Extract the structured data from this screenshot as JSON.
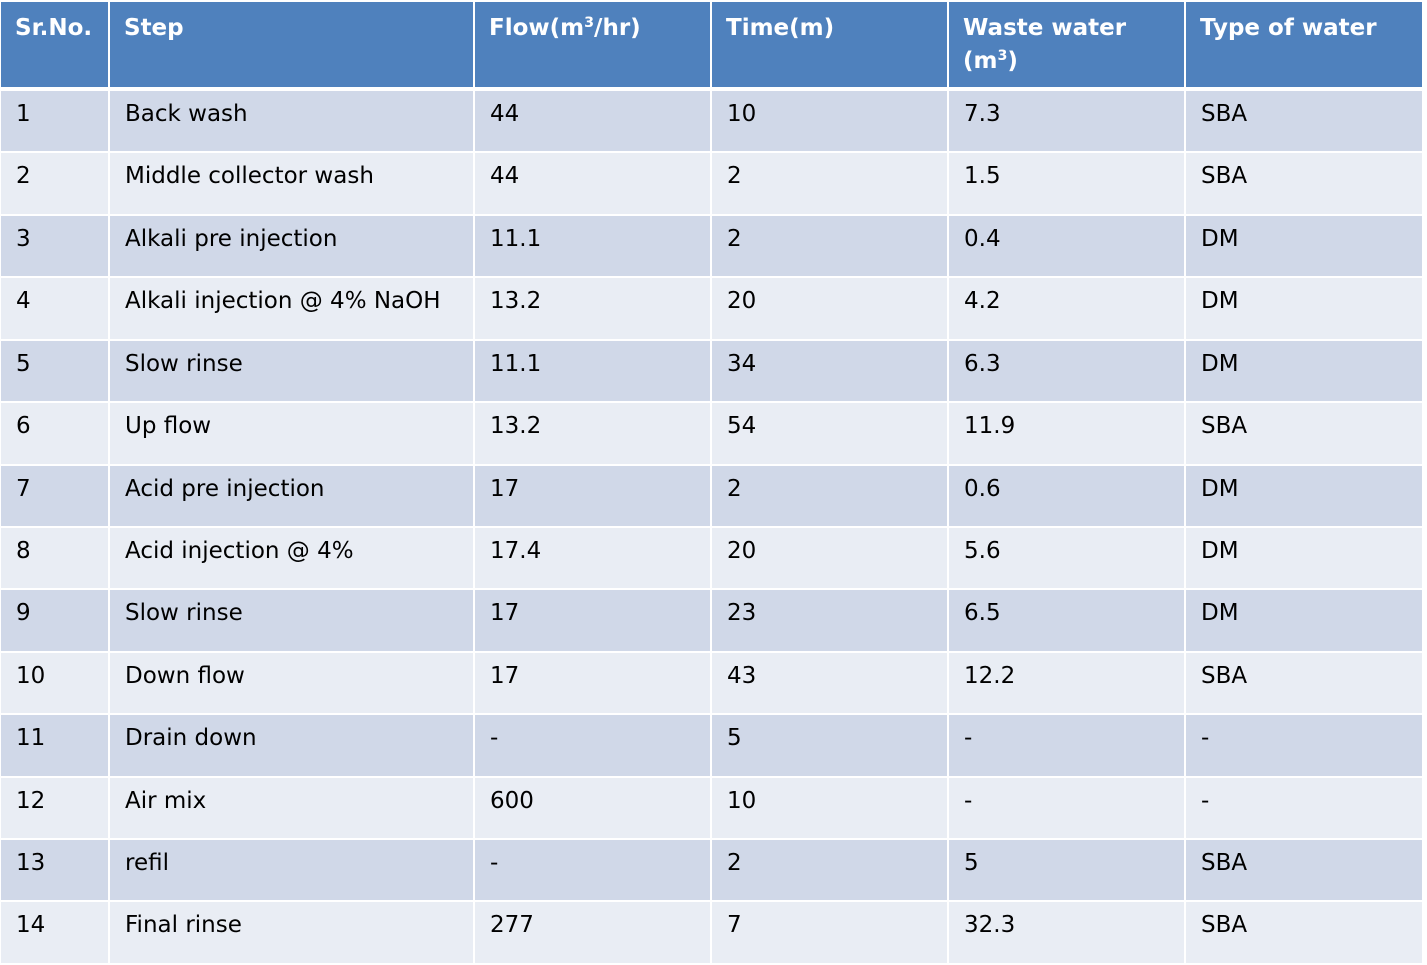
{
  "headers": {
    "sr_no": "Sr.No.",
    "step": "Step",
    "flow": {
      "pre": "Flow(m",
      "sup": "3",
      "post": "/hr)"
    },
    "time": "Time(m)",
    "waste_water": {
      "pre": "Waste water (m",
      "sup": "3",
      "post": ")"
    },
    "type_of_water": "Type of water"
  },
  "rows": [
    {
      "sr": "1",
      "step": "Back wash",
      "flow": "44",
      "time": "10",
      "waste": "7.3",
      "type": "SBA"
    },
    {
      "sr": "2",
      "step": "Middle collector wash",
      "flow": "44",
      "time": "2",
      "waste": "1.5",
      "type": "SBA"
    },
    {
      "sr": "3",
      "step": "Alkali pre injection",
      "flow": "11.1",
      "time": "2",
      "waste": "0.4",
      "type": "DM"
    },
    {
      "sr": "4",
      "step": "Alkali injection @ 4% NaOH",
      "flow": "13.2",
      "time": "20",
      "waste": "4.2",
      "type": "DM"
    },
    {
      "sr": "5",
      "step": "Slow rinse",
      "flow": "11.1",
      "time": "34",
      "waste": "6.3",
      "type": "DM"
    },
    {
      "sr": "6",
      "step": "Up flow",
      "flow": "13.2",
      "time": "54",
      "waste": "11.9",
      "type": "SBA"
    },
    {
      "sr": "7",
      "step": "Acid pre injection",
      "flow": "17",
      "time": "2",
      "waste": "0.6",
      "type": "DM"
    },
    {
      "sr": "8",
      "step": "Acid injection @ 4%",
      "flow": "17.4",
      "time": "20",
      "waste": "5.6",
      "type": "DM"
    },
    {
      "sr": "9",
      "step": "Slow rinse",
      "flow": "17",
      "time": "23",
      "waste": "6.5",
      "type": "DM"
    },
    {
      "sr": "10",
      "step": "Down flow",
      "flow": "17",
      "time": "43",
      "waste": "12.2",
      "type": "SBA"
    },
    {
      "sr": "11",
      "step": "Drain down",
      "flow": "-",
      "time": "5",
      "waste": "-",
      "type": "-"
    },
    {
      "sr": "12",
      "step": "Air mix",
      "flow": "600",
      "time": "10",
      "waste": "-",
      "type": "-"
    },
    {
      "sr": "13",
      "step": "refil",
      "flow": "-",
      "time": "2",
      "waste": "5",
      "type": "SBA"
    },
    {
      "sr": "14",
      "step": "Final rinse",
      "flow": "277",
      "time": "7",
      "waste": "32.3",
      "type": "SBA"
    }
  ],
  "colors": {
    "header_bg": "#4f81bd",
    "header_text": "#ffffff",
    "row_odd_bg": "#d0d8e8",
    "row_even_bg": "#e9edf4",
    "grid_line": "#ffffff"
  }
}
